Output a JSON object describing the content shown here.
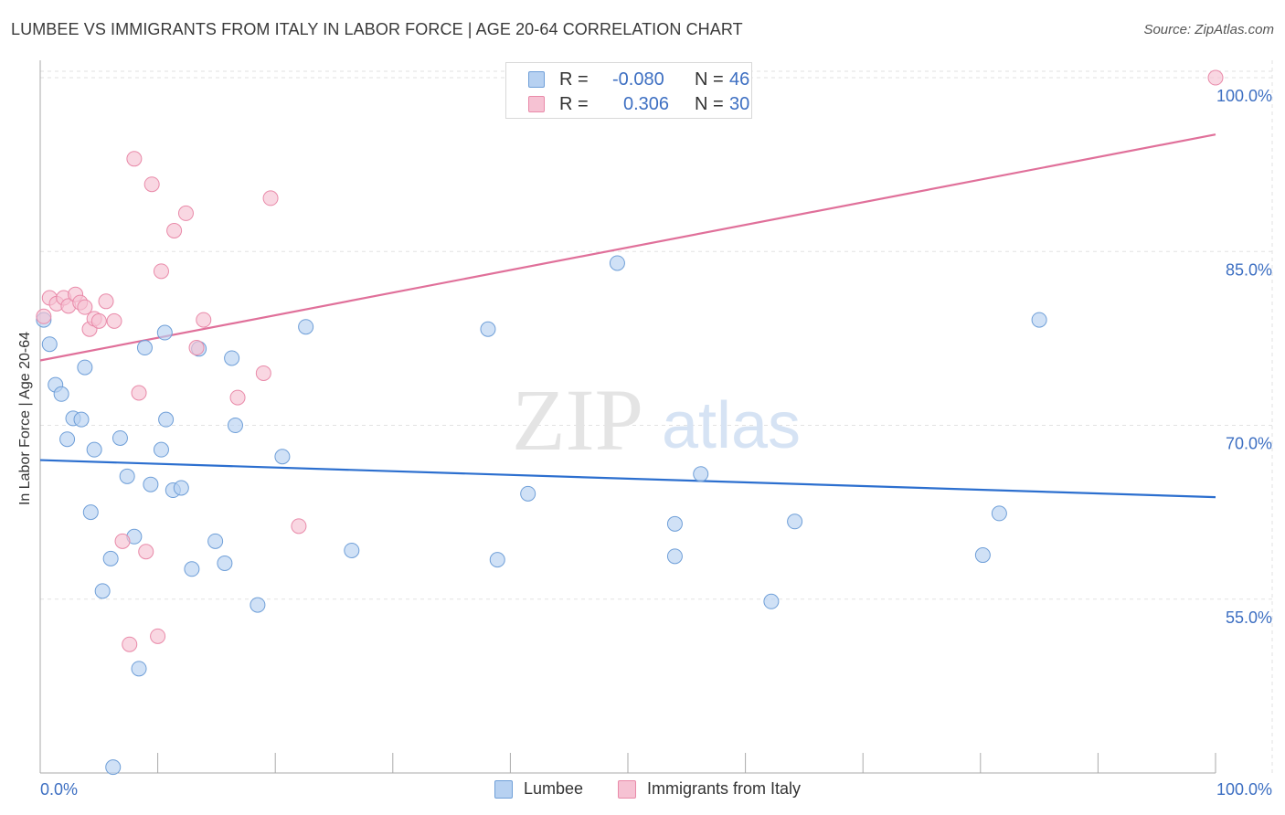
{
  "title": "LUMBEE VS IMMIGRANTS FROM ITALY IN LABOR FORCE | AGE 20-64 CORRELATION CHART",
  "source": "Source: ZipAtlas.com",
  "watermark": {
    "zip": "ZIP",
    "atlas": "atlas"
  },
  "colors": {
    "blue_fill": "#b7d1f1",
    "blue_stroke": "#6f9fd8",
    "blue_line": "#2c6fcf",
    "pink_fill": "#f6c2d3",
    "pink_stroke": "#e98aa9",
    "pink_line": "#e0709a",
    "tick_text": "#3d6fc2",
    "grid": "#e2e2e2"
  },
  "legend": {
    "rows": [
      {
        "r_label": "R =",
        "r_value": "-0.080",
        "n_label": "N =",
        "n_value": "46"
      },
      {
        "r_label": "R =",
        "r_value": "0.306",
        "n_label": "N =",
        "n_value": "30"
      }
    ]
  },
  "chart_data": {
    "type": "scatter",
    "title": "LUMBEE VS IMMIGRANTS FROM ITALY IN LABOR FORCE | AGE 20-64 CORRELATION CHART",
    "xlabel": "",
    "ylabel": "In Labor Force | Age 20-64",
    "xlim": [
      0,
      100
    ],
    "ylim": [
      40,
      101.5
    ],
    "x_tick_labels": [
      "0.0%",
      "100.0%"
    ],
    "y_ticks": [
      55,
      70,
      85,
      100
    ],
    "y_tick_labels": [
      "55.0%",
      "70.0%",
      "85.0%",
      "100.0%"
    ],
    "grid": true,
    "legend_position": "top-center",
    "series": [
      {
        "name": "Lumbee",
        "color": "blue",
        "r": -0.08,
        "n": 46,
        "trend": {
          "x": [
            0,
            100
          ],
          "y": [
            67.0,
            63.8
          ]
        },
        "points": [
          [
            0.3,
            79.1
          ],
          [
            0.8,
            77.0
          ],
          [
            1.3,
            73.5
          ],
          [
            1.8,
            72.7
          ],
          [
            2.3,
            68.8
          ],
          [
            2.8,
            70.6
          ],
          [
            3.5,
            70.5
          ],
          [
            3.8,
            75.0
          ],
          [
            4.3,
            62.5
          ],
          [
            4.6,
            67.9
          ],
          [
            6.0,
            58.5
          ],
          [
            5.3,
            55.7
          ],
          [
            6.8,
            68.9
          ],
          [
            7.4,
            65.6
          ],
          [
            8.0,
            60.4
          ],
          [
            8.4,
            49.0
          ],
          [
            6.2,
            40.5
          ],
          [
            8.9,
            76.7
          ],
          [
            9.4,
            64.9
          ],
          [
            10.3,
            67.9
          ],
          [
            10.7,
            70.5
          ],
          [
            10.6,
            78.0
          ],
          [
            11.3,
            64.4
          ],
          [
            12.0,
            64.6
          ],
          [
            12.9,
            57.6
          ],
          [
            13.5,
            76.6
          ],
          [
            14.9,
            60.0
          ],
          [
            15.7,
            58.1
          ],
          [
            16.3,
            75.8
          ],
          [
            16.6,
            70.0
          ],
          [
            18.5,
            54.5
          ],
          [
            20.6,
            67.3
          ],
          [
            22.6,
            78.5
          ],
          [
            26.5,
            59.2
          ],
          [
            38.1,
            78.3
          ],
          [
            38.9,
            58.4
          ],
          [
            41.5,
            64.1
          ],
          [
            49.1,
            84.0
          ],
          [
            54.0,
            58.7
          ],
          [
            54.0,
            61.5
          ],
          [
            56.2,
            65.8
          ],
          [
            62.2,
            54.8
          ],
          [
            64.2,
            61.7
          ],
          [
            80.2,
            58.8
          ],
          [
            81.6,
            62.4
          ],
          [
            85.0,
            79.1
          ]
        ]
      },
      {
        "name": "Immigrants from Italy",
        "color": "pink",
        "r": 0.306,
        "n": 30,
        "trend": {
          "x": [
            0,
            100
          ],
          "y": [
            75.6,
            95.1
          ]
        },
        "points": [
          [
            0.3,
            79.4
          ],
          [
            0.8,
            81.0
          ],
          [
            1.4,
            80.5
          ],
          [
            2.0,
            81.0
          ],
          [
            2.4,
            80.3
          ],
          [
            3.0,
            81.3
          ],
          [
            3.4,
            80.6
          ],
          [
            3.8,
            80.2
          ],
          [
            4.2,
            78.3
          ],
          [
            4.6,
            79.2
          ],
          [
            5.0,
            79.0
          ],
          [
            5.6,
            80.7
          ],
          [
            6.3,
            79.0
          ],
          [
            7.0,
            60.0
          ],
          [
            7.6,
            51.1
          ],
          [
            8.0,
            93.0
          ],
          [
            8.4,
            72.8
          ],
          [
            9.0,
            59.1
          ],
          [
            9.5,
            90.8
          ],
          [
            10.0,
            51.8
          ],
          [
            10.3,
            83.3
          ],
          [
            11.4,
            86.8
          ],
          [
            12.4,
            88.3
          ],
          [
            13.3,
            76.7
          ],
          [
            13.9,
            79.1
          ],
          [
            16.8,
            72.4
          ],
          [
            19.0,
            74.5
          ],
          [
            19.6,
            89.6
          ],
          [
            22.0,
            61.3
          ],
          [
            100.0,
            100.0
          ]
        ]
      }
    ]
  }
}
